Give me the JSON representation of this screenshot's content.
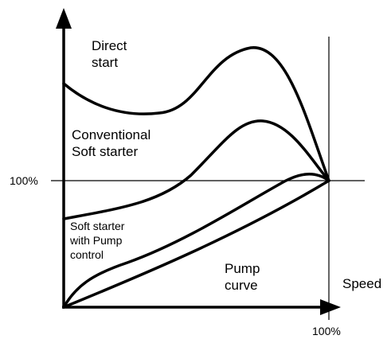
{
  "labels": {
    "direct_start": [
      "Direct",
      "start"
    ],
    "conventional": [
      "Conventional",
      "Soft starter"
    ],
    "pump_control": [
      "Soft starter",
      "with Pump",
      "control"
    ],
    "pump_curve": [
      "Pump",
      "curve"
    ],
    "y_100": "100%",
    "x_axis": "Speed",
    "x_100": "100%"
  }
}
